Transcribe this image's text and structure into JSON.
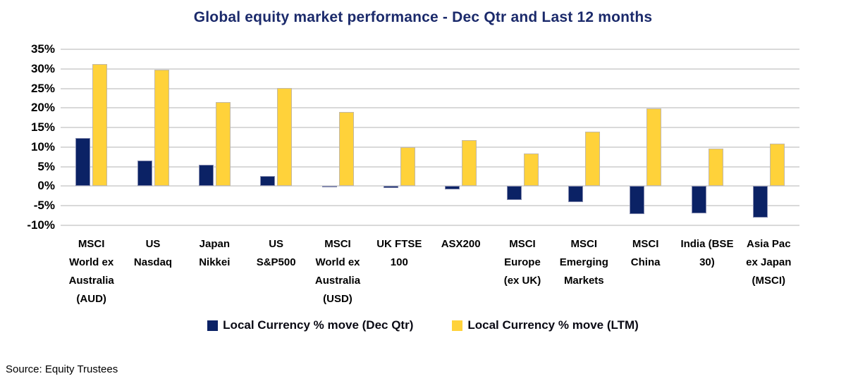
{
  "title": "Global equity market performance - Dec Qtr and Last 12 months",
  "source": "Source: Equity Trustees",
  "colors": {
    "dec_qtr_navy": "#0b2265",
    "ltm_yellow": "#ffd23a",
    "gridline": "#d9d9d9",
    "title_navy": "#1b2a6b"
  },
  "legend": [
    {
      "label": "Local Currency % move (Dec Qtr)",
      "color": "#0b2265"
    },
    {
      "label": "Local Currency % move (LTM)",
      "color": "#ffd23a"
    }
  ],
  "chart_data": {
    "type": "bar",
    "title": "Global equity market performance - Dec Qtr and Last 12 months",
    "categories": [
      "MSCI World ex Australia (AUD)",
      "US Nasdaq",
      "Japan Nikkei",
      "US S&P500",
      "MSCI World ex Australia (USD)",
      "UK FTSE 100",
      "ASX200",
      "MSCI Europe (ex UK)",
      "MSCI Emerging Markets",
      "MSCI China",
      "India (BSE 30)",
      "Asia Pac ex Japan (MSCI)"
    ],
    "category_lines": [
      [
        "MSCI",
        "World ex",
        "Australia",
        "(AUD)"
      ],
      [
        "US",
        "Nasdaq"
      ],
      [
        "Japan",
        "Nikkei"
      ],
      [
        "US",
        "S&P500"
      ],
      [
        "MSCI",
        "World ex",
        "Australia",
        "(USD)"
      ],
      [
        "UK FTSE",
        "100"
      ],
      [
        "ASX200"
      ],
      [
        "MSCI",
        "Europe",
        "(ex UK)"
      ],
      [
        "MSCI",
        "Emerging",
        "Markets"
      ],
      [
        "MSCI",
        "China"
      ],
      [
        "India (BSE",
        "30)"
      ],
      [
        "Asia Pac",
        "ex Japan",
        "(MSCI)"
      ]
    ],
    "series": [
      {
        "name": "Local Currency % move (Dec Qtr)",
        "color": "#0b2265",
        "values": [
          12.3,
          6.5,
          5.4,
          2.6,
          -0.3,
          -0.5,
          -0.8,
          -3.5,
          -4.1,
          -7.1,
          -7.0,
          -8.0
        ]
      },
      {
        "name": "Local Currency % move (LTM)",
        "color": "#ffd23a",
        "values": [
          31.3,
          29.8,
          21.5,
          25.1,
          18.9,
          9.9,
          11.7,
          8.3,
          13.9,
          19.9,
          9.7,
          10.8
        ]
      }
    ],
    "ylim": [
      -10,
      35
    ],
    "yticks": [
      35,
      30,
      25,
      20,
      15,
      10,
      5,
      0,
      -5,
      -10
    ],
    "ytick_labels": [
      "35%",
      "30%",
      "25%",
      "20%",
      "15%",
      "10%",
      "5%",
      "0%",
      "-5%",
      "-10%"
    ],
    "grid": true,
    "legend_position": "bottom",
    "xlabel": "",
    "ylabel": ""
  }
}
